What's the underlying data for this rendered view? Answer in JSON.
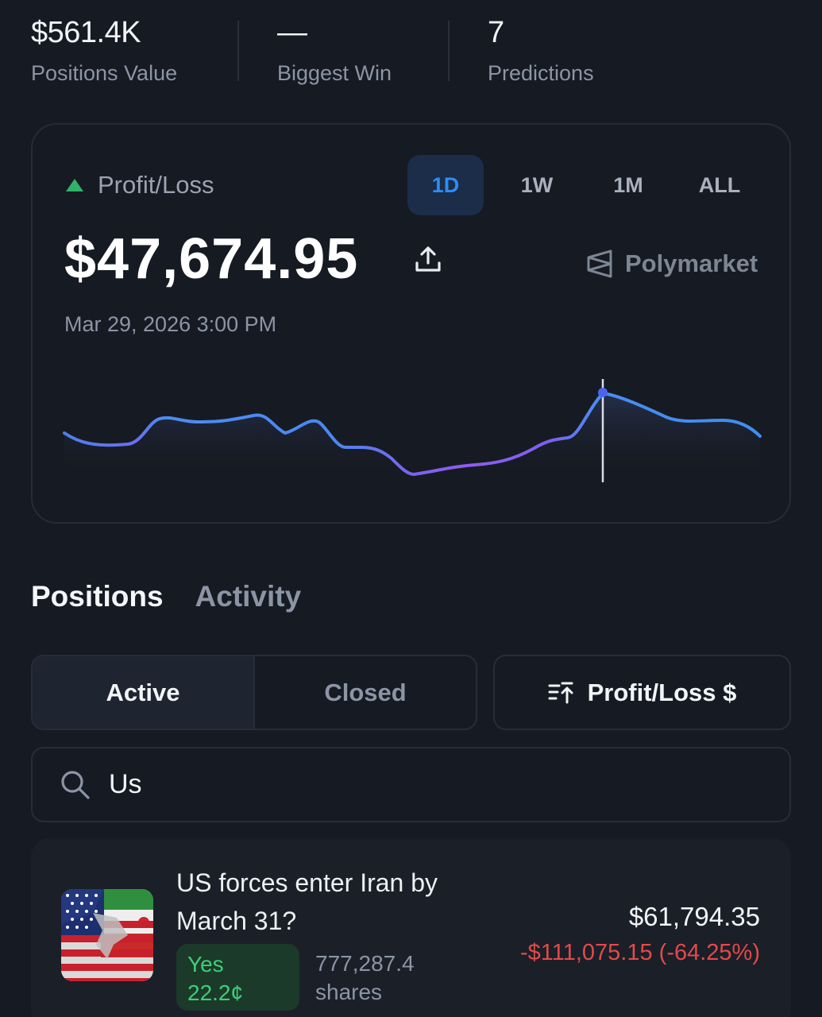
{
  "stats": [
    {
      "value": "$561.4K",
      "label": "Positions Value"
    },
    {
      "value": "—",
      "label": "Biggest Win"
    },
    {
      "value": "7",
      "label": "Predictions"
    }
  ],
  "pl_card": {
    "label": "Profit/Loss",
    "ranges": [
      "1D",
      "1W",
      "1M",
      "ALL"
    ],
    "active_range": "1D",
    "value": "$47,674.95",
    "brand": "Polymarket",
    "timestamp": "Mar 29, 2026 3:00 PM",
    "colors": {
      "up": "#2fb36b",
      "line_start": "#3d8ff0",
      "line_mid": "#8e5cf0"
    }
  },
  "tabs": {
    "positions": "Positions",
    "activity": "Activity"
  },
  "filters": {
    "active": "Active",
    "closed": "Closed",
    "sort": "Profit/Loss $"
  },
  "search": {
    "value": "Us",
    "icon": "search-icon"
  },
  "position": {
    "title": "US forces enter Iran by March 31?",
    "outcome": "Yes",
    "price": "22.2¢",
    "shares_count": "777,287.4",
    "shares_label": "shares",
    "value": "$61,794.35",
    "pnl": "-$111,075.15 (-64.25%)"
  }
}
